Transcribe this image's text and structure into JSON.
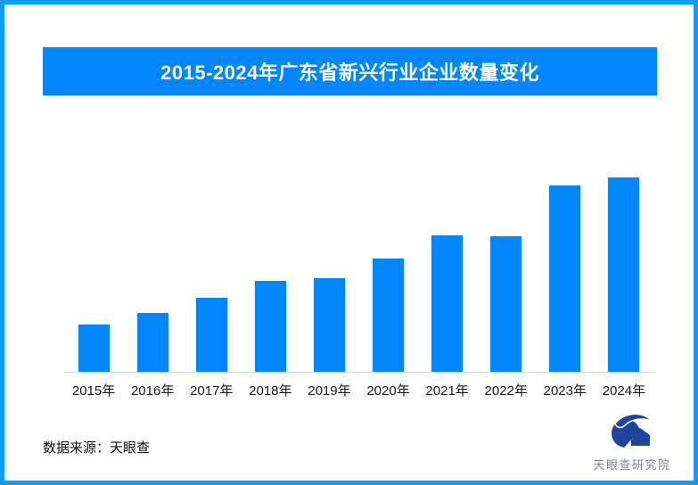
{
  "frame": {
    "border_color": "#089ef8"
  },
  "header": {
    "title": "2015-2024年广东省新兴行业企业数量变化",
    "bg_color": "#0186fd",
    "text_color": "#ffffff"
  },
  "chart_data": {
    "type": "bar",
    "title": "2015-2024年广东省新兴行业企业数量变化",
    "categories": [
      "2015年",
      "2016年",
      "2017年",
      "2018年",
      "2019年",
      "2020年",
      "2021年",
      "2022年",
      "2023年",
      "2024年"
    ],
    "values": [
      24.3,
      30.3,
      38.1,
      47.0,
      48.3,
      58.3,
      70.2,
      69.7,
      95.9,
      100
    ],
    "value_units": "relative bar height, % of tallest bar (no numeric axis or data labels shown)",
    "xlabel": "",
    "ylabel": "",
    "ylim": [
      0,
      100
    ],
    "grid": false,
    "legend": false,
    "bar_color": "#0186fd",
    "axis_line_color": "#d9d9d9"
  },
  "footer": {
    "source_label": "数据来源：天眼查"
  },
  "logo": {
    "name": "天眼查研究院",
    "symbol": "tianyancha-eye-logo",
    "symbol_color": "#1e449b",
    "text_color": "#7a8794"
  }
}
